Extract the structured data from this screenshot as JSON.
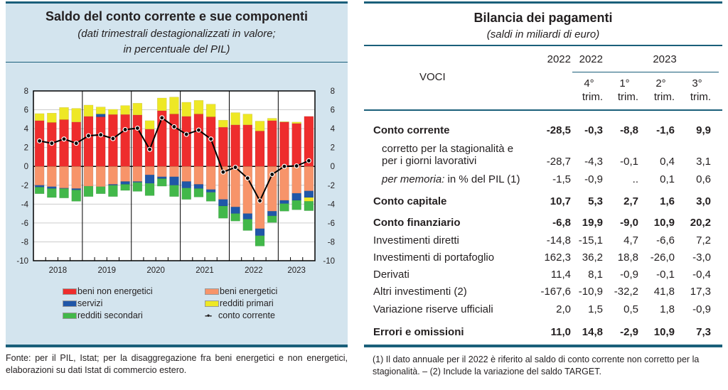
{
  "left_panel": {
    "title": "Saldo del conto corrente e sue componenti",
    "subtitle_line1": "(dati trimestrali destagionalizzati in valore;",
    "subtitle_line2": "in percentuale del PIL)",
    "source": "Fonte: per il PIL, Istat; per la disaggregazione fra beni energetici e non energetici, elaborazioni su dati Istat di commercio estero."
  },
  "chart_data": {
    "type": "bar",
    "stacked": true,
    "ylim": [
      -10,
      8
    ],
    "yticks": [
      "8",
      "6",
      "4",
      "2",
      "0",
      "-2",
      "-4",
      "-6",
      "-8",
      "-10"
    ],
    "grid": true,
    "legend_placement": "bottom",
    "x_year_labels": [
      "2018",
      "2019",
      "2020",
      "2021",
      "2022",
      "2023"
    ],
    "categories": [
      "2018Q1",
      "2018Q2",
      "2018Q3",
      "2018Q4",
      "2019Q1",
      "2019Q2",
      "2019Q3",
      "2019Q4",
      "2020Q1",
      "2020Q2",
      "2020Q3",
      "2020Q4",
      "2021Q1",
      "2021Q2",
      "2021Q3",
      "2021Q4",
      "2022Q1",
      "2022Q2",
      "2022Q3",
      "2022Q4",
      "2023Q1",
      "2023Q2",
      "2023Q3"
    ],
    "series": [
      {
        "name": "beni non energetici",
        "color": "#ee2d2d",
        "values": [
          4.85,
          4.65,
          4.95,
          4.7,
          5.3,
          5.25,
          5.5,
          5.5,
          5.45,
          3.95,
          5.9,
          5.55,
          5.3,
          5.55,
          5.25,
          4.15,
          4.4,
          4.4,
          3.75,
          4.85,
          4.7,
          4.55,
          5.3
        ]
      },
      {
        "name": "beni energetici",
        "color": "#f7946a",
        "values": [
          -2.0,
          -2.15,
          -2.3,
          -2.35,
          -2.1,
          -2.15,
          -1.9,
          -1.6,
          -1.6,
          -0.9,
          -1.1,
          -1.1,
          -1.6,
          -1.9,
          -2.45,
          -3.5,
          -4.3,
          -5.0,
          -6.6,
          -4.75,
          -3.6,
          -2.85,
          -2.6
        ]
      },
      {
        "name": "servizi",
        "color": "#2057a8",
        "values": [
          -0.2,
          -0.2,
          -0.05,
          -0.15,
          0,
          0.3,
          -0.1,
          -0.3,
          -0.1,
          -0.9,
          -0.2,
          -0.9,
          -0.7,
          -0.45,
          -0.3,
          -0.7,
          -0.7,
          -0.6,
          -0.75,
          -0.5,
          -0.35,
          -0.75,
          -0.7
        ]
      },
      {
        "name": "redditi primari",
        "color": "#eee825",
        "values": [
          0.75,
          1.0,
          1.3,
          1.45,
          1.2,
          0.75,
          0.55,
          0.95,
          1.25,
          0.9,
          1.35,
          1.8,
          1.5,
          1.45,
          1.35,
          0.75,
          1.3,
          1.15,
          1.05,
          0.25,
          0.05,
          0.15,
          -0.4
        ]
      },
      {
        "name": "redditi secondari",
        "color": "#42b84a",
        "values": [
          -0.7,
          -0.95,
          -1.0,
          -1.2,
          -1.1,
          -0.75,
          -1.2,
          -0.65,
          -0.95,
          -1.3,
          -0.8,
          -1.2,
          -1.2,
          -0.9,
          -0.95,
          -1.3,
          -0.8,
          -1.2,
          -1.1,
          -0.7,
          -0.8,
          -1.0,
          -1.0
        ]
      },
      {
        "name": "conto corrente",
        "type": "line",
        "color": "#000000",
        "values": [
          2.7,
          2.45,
          2.9,
          2.45,
          3.25,
          3.35,
          2.95,
          3.9,
          4.05,
          1.8,
          5.15,
          4.2,
          3.4,
          3.85,
          2.9,
          -0.6,
          -0.1,
          -1.25,
          -3.65,
          -0.85,
          0,
          0.05,
          0.6
        ]
      }
    ]
  },
  "right_panel": {
    "title": "Bilancia dei pagamenti",
    "subtitle": "(saldi in miliardi di euro)",
    "header": {
      "voci": "VOCI",
      "years": [
        "2022",
        "2022",
        "2023"
      ],
      "sub": [
        [
          "4°",
          "trim."
        ],
        [
          "1°",
          "trim."
        ],
        [
          "2°",
          "trim."
        ],
        [
          "3°",
          "trim."
        ]
      ]
    },
    "rows": [
      {
        "label": "Conto corrente",
        "bold": true,
        "values": [
          "-28,5",
          "-0,3",
          "-8,8",
          "-1,6",
          "9,9"
        ]
      },
      {
        "label": "corretto per la stagionalità e",
        "label2": "per i giorni lavorativi",
        "values": [
          "-28,7",
          "-4,3",
          "-0,1",
          "0,4",
          "3,1"
        ]
      },
      {
        "label_italic": "per memoria:",
        "label": " in % del PIL (1)",
        "values": [
          "-1,5",
          "-0,9",
          "..",
          "0,1",
          "0,6"
        ]
      },
      {
        "label": "Conto capitale",
        "bold": true,
        "values": [
          "10,7",
          "5,3",
          "2,7",
          "1,6",
          "3,0"
        ]
      },
      {
        "label": "Conto finanziario",
        "bold": true,
        "values": [
          "-6,8",
          "19,9",
          "-9,0",
          "10,9",
          "20,2"
        ]
      },
      {
        "label": "Investimenti diretti",
        "values": [
          "-14,8",
          "-15,1",
          "4,7",
          "-6,6",
          "7,2"
        ]
      },
      {
        "label": "Investimenti di portafoglio",
        "values": [
          "162,3",
          "36,2",
          "18,8",
          "-26,0",
          "-3,0"
        ]
      },
      {
        "label": "Derivati",
        "values": [
          "11,4",
          "8,1",
          "-0,9",
          "-0,1",
          "-0,4"
        ]
      },
      {
        "label": "Altri investimenti (2)",
        "values": [
          "-167,6",
          "-10,9",
          "-32,2",
          "41,8",
          "17,3"
        ]
      },
      {
        "label": "Variazione riserve ufficiali",
        "values": [
          "2,0",
          "1,5",
          "0,5",
          "1,8",
          "-0,9"
        ]
      },
      {
        "label": "Errori e omissioni",
        "bold": true,
        "values": [
          "11,0",
          "14,8",
          "-2,9",
          "10,9",
          "7,3"
        ]
      }
    ],
    "footnote": "(1) Il dato annuale per il 2022 è riferito al saldo di conto corrente non corretto per la stagionalità. – (2) Include la variazione del saldo TARGET."
  }
}
